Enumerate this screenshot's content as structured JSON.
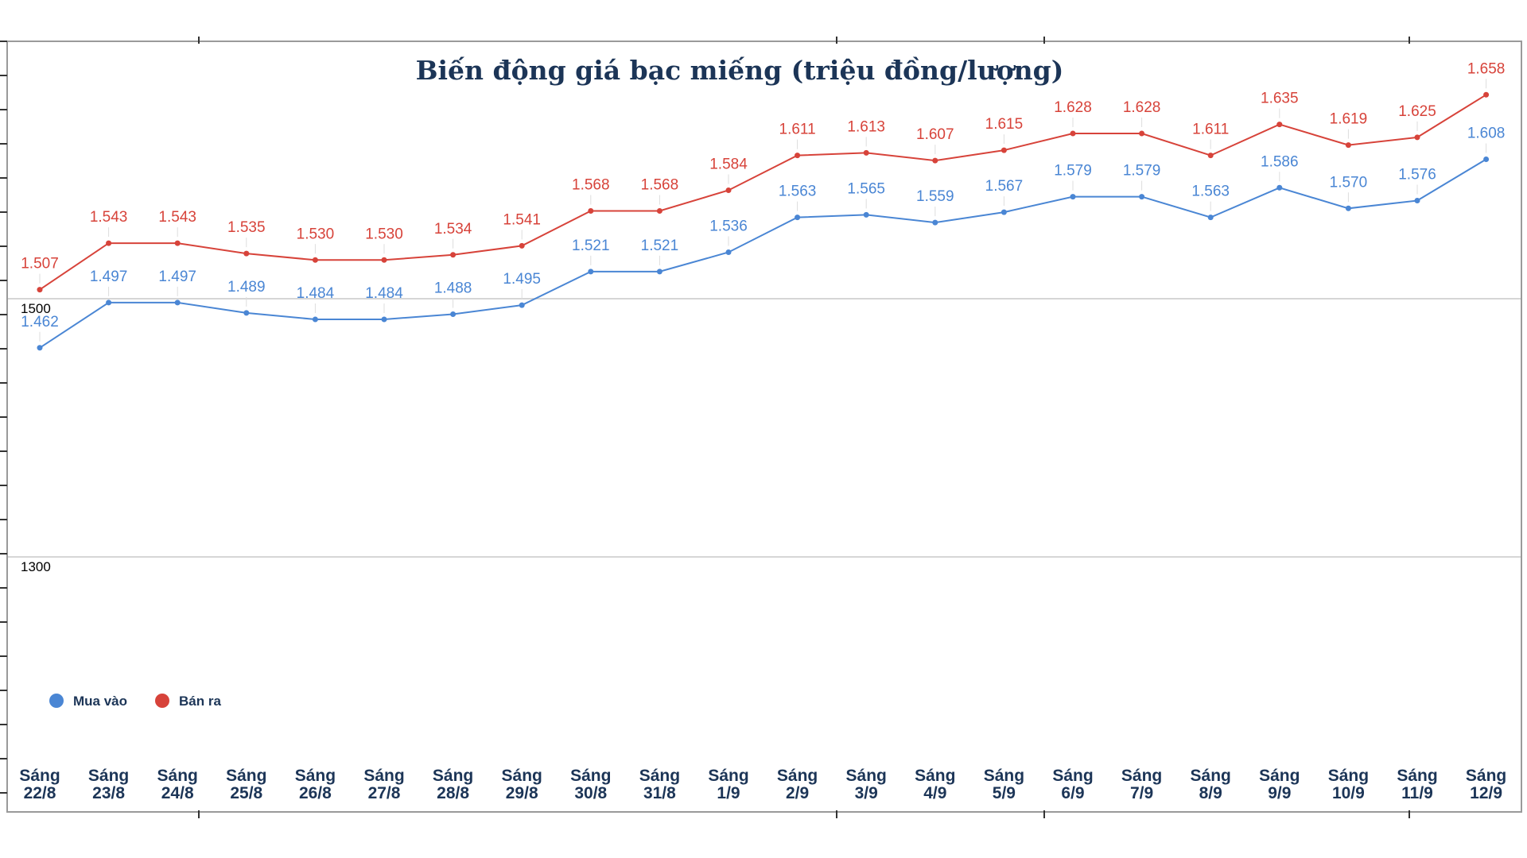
{
  "chart_data": {
    "type": "line",
    "title": "Biến động giá bạc miếng (triệu đồng/lượng)",
    "xlabel": "",
    "ylabel": "",
    "ylim": [
      1100,
      1700
    ],
    "yticks": [
      "1500",
      "1300"
    ],
    "grid": true,
    "legend_position": "bottom-left",
    "categories": [
      [
        "Sáng",
        "22/8"
      ],
      [
        "Sáng",
        "23/8"
      ],
      [
        "Sáng",
        "24/8"
      ],
      [
        "Sáng",
        "25/8"
      ],
      [
        "Sáng",
        "26/8"
      ],
      [
        "Sáng",
        "27/8"
      ],
      [
        "Sáng",
        "28/8"
      ],
      [
        "Sáng",
        "29/8"
      ],
      [
        "Sáng",
        "30/8"
      ],
      [
        "Sáng",
        "31/8"
      ],
      [
        "Sáng",
        "1/9"
      ],
      [
        "Sáng",
        "2/9"
      ],
      [
        "Sáng",
        "3/9"
      ],
      [
        "Sáng",
        "4/9"
      ],
      [
        "Sáng",
        "5/9"
      ],
      [
        "Sáng",
        "6/9"
      ],
      [
        "Sáng",
        "7/9"
      ],
      [
        "Sáng",
        "8/9"
      ],
      [
        "Sáng",
        "9/9"
      ],
      [
        "Sáng",
        "10/9"
      ],
      [
        "Sáng",
        "11/9"
      ],
      [
        "Sáng",
        "12/9"
      ]
    ],
    "series": [
      {
        "name": "Mua vào",
        "color": "#4a86d4",
        "values": [
          1462,
          1497,
          1497,
          1489,
          1484,
          1484,
          1488,
          1495,
          1521,
          1521,
          1536,
          1563,
          1565,
          1559,
          1567,
          1579,
          1579,
          1563,
          1586,
          1570,
          1576,
          1608
        ],
        "labels": [
          "1.462",
          "1.497",
          "1.497",
          "1.489",
          "1.484",
          "1.484",
          "1.488",
          "1.495",
          "1.521",
          "1.521",
          "1.536",
          "1.563",
          "1.565",
          "1.559",
          "1.567",
          "1.579",
          "1.579",
          "1.563",
          "1.586",
          "1.570",
          "1.576",
          "1.608"
        ]
      },
      {
        "name": "Bán ra",
        "color": "#d7433a",
        "values": [
          1507,
          1543,
          1543,
          1535,
          1530,
          1530,
          1534,
          1541,
          1568,
          1568,
          1584,
          1611,
          1613,
          1607,
          1615,
          1628,
          1628,
          1611,
          1635,
          1619,
          1625,
          1658
        ],
        "labels": [
          "1.507",
          "1.543",
          "1.543",
          "1.535",
          "1.530",
          "1.530",
          "1.534",
          "1.541",
          "1.568",
          "1.568",
          "1.584",
          "1.611",
          "1.613",
          "1.607",
          "1.615",
          "1.628",
          "1.628",
          "1.611",
          "1.635",
          "1.619",
          "1.625",
          "1.658"
        ]
      }
    ]
  }
}
